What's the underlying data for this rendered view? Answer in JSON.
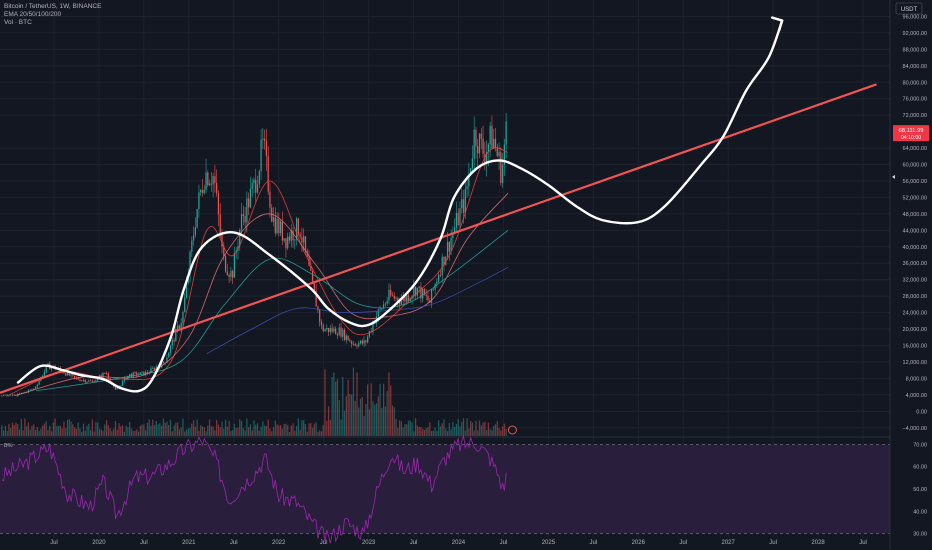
{
  "header": {
    "symbol_line": "Bitcoin / TetherUS, 1W, BINANCE",
    "ema_line": "EMA 20/50/100/200",
    "vol_line": "Vol · BTC"
  },
  "price_axis": {
    "currency_button": "USDT",
    "last_price": "68,111.99",
    "countdown": "04:10:00"
  },
  "rsi_pane": {
    "label": "B%",
    "ticks": [
      "70.00",
      "60.00",
      "50.00",
      "40.00",
      "30.00"
    ],
    "upper_band": 70,
    "lower_band": 30,
    "ylim": [
      28,
      72
    ]
  },
  "colors": {
    "background": "#131722",
    "grid": "#1e222d",
    "up": "#26a69a",
    "down": "#ef5350",
    "trendline": "#f05454",
    "drawing": "#ffffff",
    "rsi_fill": "#2a1e3d",
    "rsi_line": "#9c27b0",
    "ema20": "#f44336",
    "ema50": "#e57373",
    "ema100": "#26a69a",
    "ema200": "#3f51b5"
  },
  "chart_data": {
    "type": "candlestick",
    "title": "Bitcoin / TetherUS, 1W, BINANCE",
    "ylim": [
      -6000,
      100000
    ],
    "y_ticks": [
      {
        "label": "96,000.00",
        "value": 96000
      },
      {
        "label": "92,000.00",
        "value": 92000
      },
      {
        "label": "88,000.00",
        "value": 88000
      },
      {
        "label": "84,000.00",
        "value": 84000
      },
      {
        "label": "80,000.00",
        "value": 80000
      },
      {
        "label": "76,000.00",
        "value": 76000
      },
      {
        "label": "72,000.00",
        "value": 72000
      },
      {
        "label": "64,000.00",
        "value": 64000
      },
      {
        "label": "60,000.00",
        "value": 60000
      },
      {
        "label": "56,000.00",
        "value": 56000
      },
      {
        "label": "52,000.00",
        "value": 52000
      },
      {
        "label": "48,000.00",
        "value": 48000
      },
      {
        "label": "44,000.00",
        "value": 44000
      },
      {
        "label": "40,000.00",
        "value": 40000
      },
      {
        "label": "36,000.00",
        "value": 36000
      },
      {
        "label": "32,000.00",
        "value": 32000
      },
      {
        "label": "28,000.00",
        "value": 28000
      },
      {
        "label": "24,000.00",
        "value": 24000
      },
      {
        "label": "20,000.00",
        "value": 20000
      },
      {
        "label": "16,000.00",
        "value": 16000
      },
      {
        "label": "12,000.00",
        "value": 12000
      },
      {
        "label": "8,000.00",
        "value": 8000
      },
      {
        "label": "4,000.00",
        "value": 4000
      },
      {
        "label": "0.00",
        "value": 0
      },
      {
        "label": "−4,000.00",
        "value": -4000
      }
    ],
    "x_ticks": [
      {
        "label": "Jul",
        "t": 2019.5
      },
      {
        "label": "2020",
        "t": 2020.0
      },
      {
        "label": "Jul",
        "t": 2020.5
      },
      {
        "label": "2021",
        "t": 2021.0
      },
      {
        "label": "Jul",
        "t": 2021.5
      },
      {
        "label": "2022",
        "t": 2022.0
      },
      {
        "label": "Jul",
        "t": 2022.5
      },
      {
        "label": "2023",
        "t": 2023.0
      },
      {
        "label": "Jul",
        "t": 2023.5
      },
      {
        "label": "2024",
        "t": 2024.0
      },
      {
        "label": "Jul",
        "t": 2024.5
      },
      {
        "label": "2025",
        "t": 2025.0
      },
      {
        "label": "Jul",
        "t": 2025.5
      },
      {
        "label": "2026",
        "t": 2026.0
      },
      {
        "label": "Jul",
        "t": 2026.5
      },
      {
        "label": "2027",
        "t": 2027.0
      },
      {
        "label": "Jul",
        "t": 2027.5
      },
      {
        "label": "2028",
        "t": 2028.0
      },
      {
        "label": "Jul",
        "t": 2028.5
      }
    ],
    "xlim": [
      2018.9,
      2028.8
    ],
    "price_path": [
      [
        2018.9,
        3800
      ],
      [
        2019.1,
        3900
      ],
      [
        2019.3,
        5500
      ],
      [
        2019.45,
        11000
      ],
      [
        2019.55,
        10500
      ],
      [
        2019.75,
        8000
      ],
      [
        2019.95,
        7200
      ],
      [
        2020.1,
        9500
      ],
      [
        2020.2,
        5000
      ],
      [
        2020.35,
        8800
      ],
      [
        2020.55,
        9300
      ],
      [
        2020.75,
        12000
      ],
      [
        2020.95,
        23000
      ],
      [
        2021.1,
        48000
      ],
      [
        2021.2,
        58000
      ],
      [
        2021.3,
        57000
      ],
      [
        2021.4,
        37000
      ],
      [
        2021.5,
        33000
      ],
      [
        2021.6,
        46000
      ],
      [
        2021.75,
        55000
      ],
      [
        2021.85,
        65000
      ],
      [
        2021.95,
        47000
      ],
      [
        2022.1,
        42000
      ],
      [
        2022.25,
        45000
      ],
      [
        2022.4,
        30000
      ],
      [
        2022.5,
        20000
      ],
      [
        2022.7,
        19500
      ],
      [
        2022.85,
        16500
      ],
      [
        2022.98,
        16600
      ],
      [
        2023.1,
        23000
      ],
      [
        2023.25,
        28000
      ],
      [
        2023.4,
        27000
      ],
      [
        2023.55,
        30000
      ],
      [
        2023.7,
        26500
      ],
      [
        2023.8,
        34000
      ],
      [
        2023.95,
        43000
      ],
      [
        2024.1,
        52000
      ],
      [
        2024.2,
        68000
      ],
      [
        2024.3,
        63000
      ],
      [
        2024.4,
        67000
      ],
      [
        2024.5,
        58000
      ],
      [
        2024.55,
        68112
      ]
    ],
    "ema_series": [
      {
        "key": "ema20",
        "points": [
          [
            2019.0,
            4000
          ],
          [
            2019.6,
            9500
          ],
          [
            2020.2,
            7800
          ],
          [
            2020.8,
            12000
          ],
          [
            2021.2,
            44000
          ],
          [
            2021.5,
            38000
          ],
          [
            2021.9,
            56000
          ],
          [
            2022.3,
            38000
          ],
          [
            2022.7,
            22000
          ],
          [
            2023.0,
            19000
          ],
          [
            2023.5,
            28000
          ],
          [
            2023.9,
            38000
          ],
          [
            2024.3,
            62000
          ],
          [
            2024.55,
            63000
          ]
        ]
      },
      {
        "key": "ema50",
        "points": [
          [
            2019.1,
            4000
          ],
          [
            2019.8,
            8300
          ],
          [
            2020.5,
            8800
          ],
          [
            2021.0,
            18000
          ],
          [
            2021.4,
            38000
          ],
          [
            2021.9,
            48000
          ],
          [
            2022.4,
            36000
          ],
          [
            2022.8,
            24000
          ],
          [
            2023.2,
            23000
          ],
          [
            2023.7,
            27000
          ],
          [
            2024.1,
            42000
          ],
          [
            2024.55,
            53000
          ]
        ]
      },
      {
        "key": "ema100",
        "points": [
          [
            2019.3,
            5000
          ],
          [
            2020.2,
            8000
          ],
          [
            2020.9,
            12000
          ],
          [
            2021.4,
            26000
          ],
          [
            2021.9,
            37000
          ],
          [
            2022.4,
            33000
          ],
          [
            2022.9,
            26000
          ],
          [
            2023.4,
            26000
          ],
          [
            2023.9,
            33000
          ],
          [
            2024.55,
            44000
          ]
        ]
      },
      {
        "key": "ema200",
        "points": [
          [
            2021.2,
            14000
          ],
          [
            2021.7,
            20000
          ],
          [
            2022.2,
            25000
          ],
          [
            2022.7,
            24000
          ],
          [
            2023.2,
            24500
          ],
          [
            2023.7,
            26000
          ],
          [
            2024.2,
            31000
          ],
          [
            2024.55,
            35000
          ]
        ]
      }
    ],
    "trendline": {
      "from": [
        2018.9,
        4500
      ],
      "to": [
        2028.65,
        79500
      ]
    },
    "drawing_path": [
      [
        2019.1,
        7000
      ],
      [
        2019.35,
        11000
      ],
      [
        2019.6,
        10000
      ],
      [
        2019.8,
        8800
      ],
      [
        2020.05,
        7800
      ],
      [
        2020.25,
        5600
      ],
      [
        2020.45,
        5000
      ],
      [
        2020.6,
        8000
      ],
      [
        2020.8,
        18000
      ],
      [
        2020.95,
        30000
      ],
      [
        2021.15,
        40000
      ],
      [
        2021.5,
        43500
      ],
      [
        2021.9,
        38000
      ],
      [
        2022.35,
        30000
      ],
      [
        2022.55,
        25000
      ],
      [
        2022.8,
        21500
      ],
      [
        2023.0,
        21000
      ],
      [
        2023.25,
        25000
      ],
      [
        2023.55,
        32000
      ],
      [
        2023.8,
        42000
      ],
      [
        2023.95,
        52000
      ],
      [
        2024.2,
        59000
      ],
      [
        2024.45,
        61000
      ],
      [
        2024.7,
        59000
      ],
      [
        2025.0,
        55000
      ],
      [
        2025.3,
        50000
      ],
      [
        2025.6,
        46500
      ],
      [
        2026.0,
        46000
      ],
      [
        2026.3,
        50000
      ],
      [
        2026.7,
        60000
      ],
      [
        2026.95,
        67000
      ],
      [
        2027.2,
        78000
      ],
      [
        2027.45,
        86000
      ],
      [
        2027.6,
        95000
      ]
    ],
    "arrow_head": [
      2027.6,
      95000
    ],
    "rsi_path": [
      [
        2018.9,
        55
      ],
      [
        2019.2,
        62
      ],
      [
        2019.45,
        69
      ],
      [
        2019.65,
        48
      ],
      [
        2019.9,
        42
      ],
      [
        2020.05,
        53
      ],
      [
        2020.2,
        38
      ],
      [
        2020.4,
        55
      ],
      [
        2020.6,
        56
      ],
      [
        2020.8,
        62
      ],
      [
        2020.95,
        68
      ],
      [
        2021.15,
        72
      ],
      [
        2021.3,
        63
      ],
      [
        2021.45,
        45
      ],
      [
        2021.6,
        52
      ],
      [
        2021.75,
        58
      ],
      [
        2021.85,
        64
      ],
      [
        2022.0,
        47
      ],
      [
        2022.2,
        44
      ],
      [
        2022.4,
        33
      ],
      [
        2022.55,
        27
      ],
      [
        2022.75,
        35
      ],
      [
        2022.95,
        30
      ],
      [
        2023.1,
        50
      ],
      [
        2023.25,
        66
      ],
      [
        2023.4,
        58
      ],
      [
        2023.55,
        62
      ],
      [
        2023.7,
        52
      ],
      [
        2023.85,
        64
      ],
      [
        2024.0,
        70
      ],
      [
        2024.2,
        71
      ],
      [
        2024.35,
        64
      ],
      [
        2024.45,
        56
      ],
      [
        2024.5,
        49
      ],
      [
        2024.55,
        61
      ]
    ]
  }
}
